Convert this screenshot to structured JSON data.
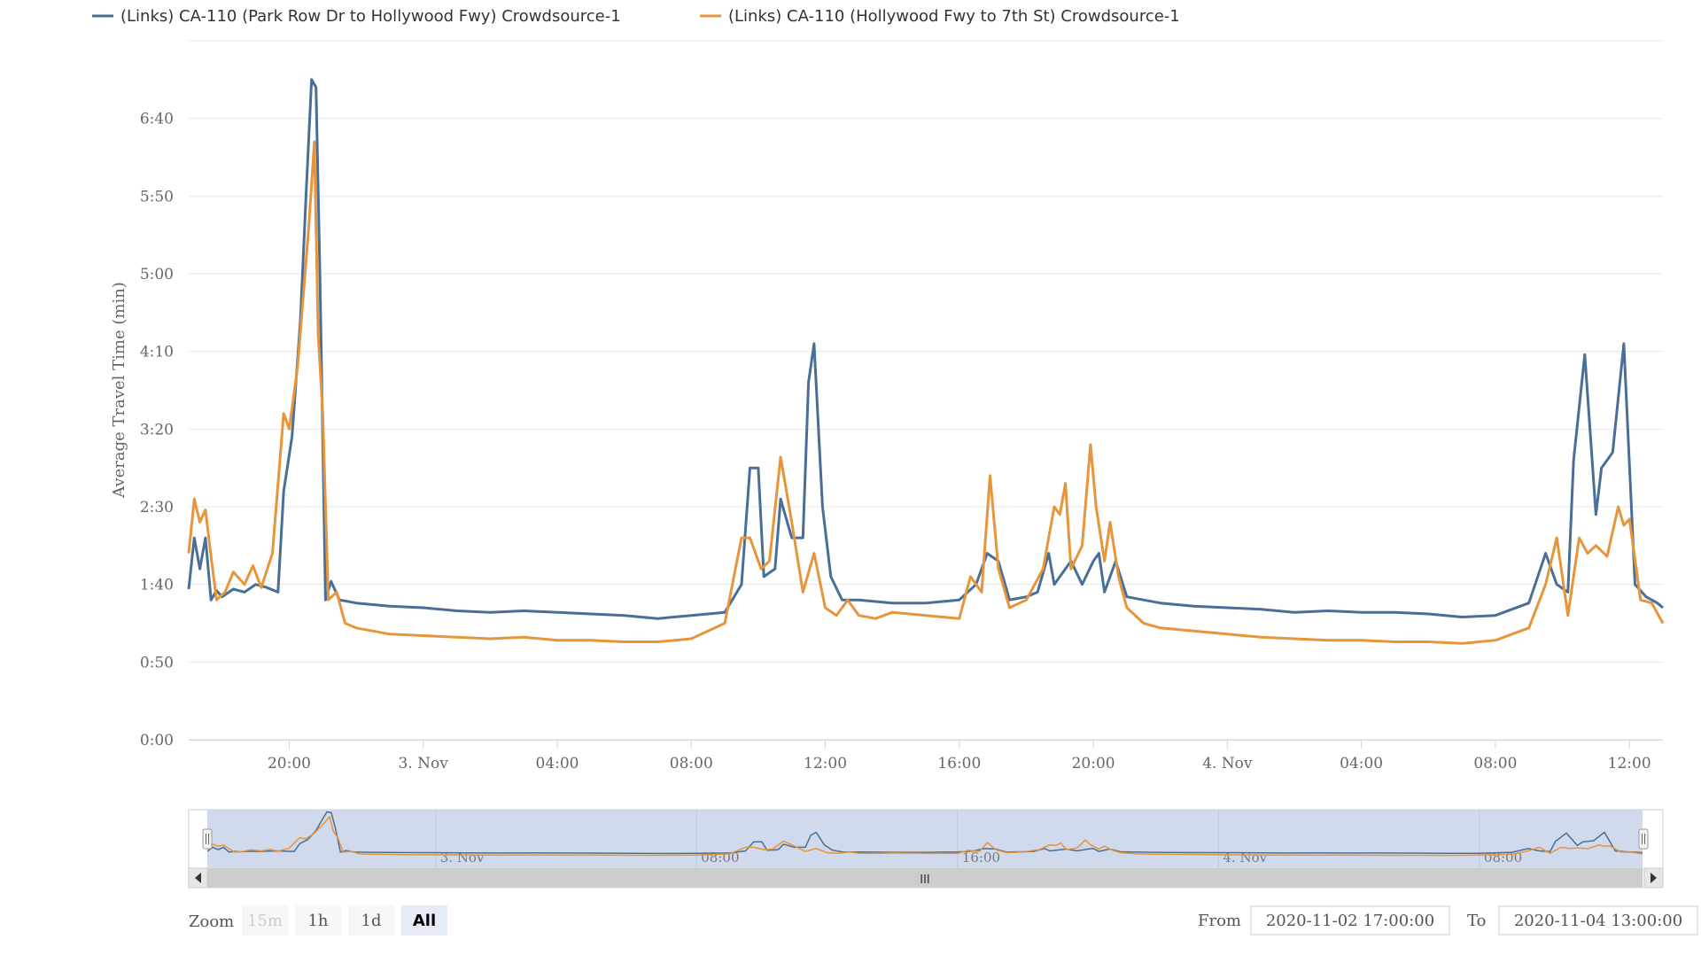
{
  "chart_data": {
    "type": "line",
    "ylabel": "Average Travel Time (min)",
    "y_ticks": [
      "0:00",
      "0:50",
      "1:40",
      "2:30",
      "3:20",
      "4:10",
      "5:00",
      "5:50",
      "6:40"
    ],
    "ylim_seconds": [
      0,
      450
    ],
    "x_range": [
      "2020-11-02 17:00",
      "2020-11-04 13:00"
    ],
    "x_ticks": [
      {
        "t": "2020-11-02 20:00",
        "label": "20:00"
      },
      {
        "t": "2020-11-03 00:00",
        "label": "3. Nov"
      },
      {
        "t": "2020-11-03 04:00",
        "label": "04:00"
      },
      {
        "t": "2020-11-03 08:00",
        "label": "08:00"
      },
      {
        "t": "2020-11-03 12:00",
        "label": "12:00"
      },
      {
        "t": "2020-11-03 16:00",
        "label": "16:00"
      },
      {
        "t": "2020-11-03 20:00",
        "label": "20:00"
      },
      {
        "t": "2020-11-04 00:00",
        "label": "4. Nov"
      },
      {
        "t": "2020-11-04 04:00",
        "label": "04:00"
      },
      {
        "t": "2020-11-04 08:00",
        "label": "08:00"
      },
      {
        "t": "2020-11-04 12:00",
        "label": "12:00"
      }
    ],
    "series": [
      {
        "name": "(Links) CA-110 (Park Row Dr to Hollywood Fwy) Crowdsource-1",
        "color": "#4a6f97",
        "points": [
          [
            "2020-11-02 17:00",
            97
          ],
          [
            "2020-11-02 17:10",
            130
          ],
          [
            "2020-11-02 17:20",
            110
          ],
          [
            "2020-11-02 17:30",
            130
          ],
          [
            "2020-11-02 17:40",
            90
          ],
          [
            "2020-11-02 17:50",
            96
          ],
          [
            "2020-11-02 18:00",
            92
          ],
          [
            "2020-11-02 18:20",
            97
          ],
          [
            "2020-11-02 18:40",
            95
          ],
          [
            "2020-11-02 19:00",
            100
          ],
          [
            "2020-11-02 19:20",
            98
          ],
          [
            "2020-11-02 19:40",
            95
          ],
          [
            "2020-11-02 19:50",
            160
          ],
          [
            "2020-11-02 20:05",
            195
          ],
          [
            "2020-11-02 20:20",
            270
          ],
          [
            "2020-11-02 20:30",
            350
          ],
          [
            "2020-11-02 20:40",
            425
          ],
          [
            "2020-11-02 20:48",
            420
          ],
          [
            "2020-11-02 20:55",
            300
          ],
          [
            "2020-11-02 21:05",
            90
          ],
          [
            "2020-11-02 21:15",
            102
          ],
          [
            "2020-11-02 21:30",
            90
          ],
          [
            "2020-11-02 22:00",
            88
          ],
          [
            "2020-11-02 23:00",
            86
          ],
          [
            "2020-11-03 00:00",
            85
          ],
          [
            "2020-11-03 01:00",
            83
          ],
          [
            "2020-11-03 02:00",
            82
          ],
          [
            "2020-11-03 03:00",
            83
          ],
          [
            "2020-11-03 04:00",
            82
          ],
          [
            "2020-11-03 05:00",
            81
          ],
          [
            "2020-11-03 06:00",
            80
          ],
          [
            "2020-11-03 07:00",
            78
          ],
          [
            "2020-11-03 08:00",
            80
          ],
          [
            "2020-11-03 09:00",
            82
          ],
          [
            "2020-11-03 09:30",
            100
          ],
          [
            "2020-11-03 09:45",
            175
          ],
          [
            "2020-11-03 10:00",
            175
          ],
          [
            "2020-11-03 10:10",
            105
          ],
          [
            "2020-11-03 10:30",
            110
          ],
          [
            "2020-11-03 10:40",
            155
          ],
          [
            "2020-11-03 11:00",
            130
          ],
          [
            "2020-11-03 11:20",
            130
          ],
          [
            "2020-11-03 11:30",
            230
          ],
          [
            "2020-11-03 11:40",
            255
          ],
          [
            "2020-11-03 11:55",
            150
          ],
          [
            "2020-11-03 12:10",
            105
          ],
          [
            "2020-11-03 12:30",
            90
          ],
          [
            "2020-11-03 13:00",
            90
          ],
          [
            "2020-11-03 14:00",
            88
          ],
          [
            "2020-11-03 15:00",
            88
          ],
          [
            "2020-11-03 16:00",
            90
          ],
          [
            "2020-11-03 16:30",
            100
          ],
          [
            "2020-11-03 16:50",
            120
          ],
          [
            "2020-11-03 17:10",
            115
          ],
          [
            "2020-11-03 17:30",
            90
          ],
          [
            "2020-11-03 18:00",
            92
          ],
          [
            "2020-11-03 18:20",
            95
          ],
          [
            "2020-11-03 18:40",
            120
          ],
          [
            "2020-11-03 18:50",
            100
          ],
          [
            "2020-11-03 19:10",
            110
          ],
          [
            "2020-11-03 19:20",
            115
          ],
          [
            "2020-11-03 19:40",
            100
          ],
          [
            "2020-11-03 20:00",
            115
          ],
          [
            "2020-11-03 20:10",
            120
          ],
          [
            "2020-11-03 20:20",
            95
          ],
          [
            "2020-11-03 20:40",
            115
          ],
          [
            "2020-11-03 21:00",
            92
          ],
          [
            "2020-11-03 22:00",
            88
          ],
          [
            "2020-11-03 23:00",
            86
          ],
          [
            "2020-11-04 00:00",
            85
          ],
          [
            "2020-11-04 01:00",
            84
          ],
          [
            "2020-11-04 02:00",
            82
          ],
          [
            "2020-11-04 03:00",
            83
          ],
          [
            "2020-11-04 04:00",
            82
          ],
          [
            "2020-11-04 05:00",
            82
          ],
          [
            "2020-11-04 06:00",
            81
          ],
          [
            "2020-11-04 07:00",
            79
          ],
          [
            "2020-11-04 08:00",
            80
          ],
          [
            "2020-11-04 09:00",
            88
          ],
          [
            "2020-11-04 09:30",
            120
          ],
          [
            "2020-11-04 09:50",
            100
          ],
          [
            "2020-11-04 10:10",
            95
          ],
          [
            "2020-11-04 10:20",
            180
          ],
          [
            "2020-11-04 10:40",
            248
          ],
          [
            "2020-11-04 11:00",
            145
          ],
          [
            "2020-11-04 11:10",
            175
          ],
          [
            "2020-11-04 11:30",
            185
          ],
          [
            "2020-11-04 11:50",
            255
          ],
          [
            "2020-11-04 12:10",
            100
          ],
          [
            "2020-11-04 12:30",
            92
          ],
          [
            "2020-11-04 12:50",
            88
          ],
          [
            "2020-11-04 13:00",
            85
          ]
        ]
      },
      {
        "name": "(Links) CA-110 (Hollywood Fwy to 7th St) Crowdsource-1",
        "color": "#e6953b",
        "points": [
          [
            "2020-11-02 17:00",
            120
          ],
          [
            "2020-11-02 17:10",
            155
          ],
          [
            "2020-11-02 17:20",
            140
          ],
          [
            "2020-11-02 17:30",
            148
          ],
          [
            "2020-11-02 17:40",
            118
          ],
          [
            "2020-11-02 17:50",
            90
          ],
          [
            "2020-11-02 18:05",
            95
          ],
          [
            "2020-11-02 18:20",
            108
          ],
          [
            "2020-11-02 18:40",
            100
          ],
          [
            "2020-11-02 18:55",
            112
          ],
          [
            "2020-11-02 19:10",
            98
          ],
          [
            "2020-11-02 19:30",
            120
          ],
          [
            "2020-11-02 19:50",
            210
          ],
          [
            "2020-11-02 20:00",
            200
          ],
          [
            "2020-11-02 20:15",
            240
          ],
          [
            "2020-11-02 20:35",
            330
          ],
          [
            "2020-11-02 20:45",
            385
          ],
          [
            "2020-11-02 20:52",
            260
          ],
          [
            "2020-11-02 21:00",
            210
          ],
          [
            "2020-11-02 21:10",
            90
          ],
          [
            "2020-11-02 21:25",
            95
          ],
          [
            "2020-11-02 21:40",
            75
          ],
          [
            "2020-11-02 22:00",
            72
          ],
          [
            "2020-11-02 23:00",
            68
          ],
          [
            "2020-11-03 00:00",
            67
          ],
          [
            "2020-11-03 01:00",
            66
          ],
          [
            "2020-11-03 02:00",
            65
          ],
          [
            "2020-11-03 03:00",
            66
          ],
          [
            "2020-11-03 04:00",
            64
          ],
          [
            "2020-11-03 05:00",
            64
          ],
          [
            "2020-11-03 06:00",
            63
          ],
          [
            "2020-11-03 07:00",
            63
          ],
          [
            "2020-11-03 08:00",
            65
          ],
          [
            "2020-11-03 09:00",
            75
          ],
          [
            "2020-11-03 09:30",
            130
          ],
          [
            "2020-11-03 09:45",
            130
          ],
          [
            "2020-11-03 10:05",
            110
          ],
          [
            "2020-11-03 10:20",
            115
          ],
          [
            "2020-11-03 10:40",
            182
          ],
          [
            "2020-11-03 11:00",
            140
          ],
          [
            "2020-11-03 11:20",
            95
          ],
          [
            "2020-11-03 11:40",
            120
          ],
          [
            "2020-11-03 12:00",
            85
          ],
          [
            "2020-11-03 12:20",
            80
          ],
          [
            "2020-11-03 12:40",
            90
          ],
          [
            "2020-11-03 13:00",
            80
          ],
          [
            "2020-11-03 13:30",
            78
          ],
          [
            "2020-11-03 14:00",
            82
          ],
          [
            "2020-11-03 15:00",
            80
          ],
          [
            "2020-11-03 16:00",
            78
          ],
          [
            "2020-11-03 16:20",
            105
          ],
          [
            "2020-11-03 16:40",
            95
          ],
          [
            "2020-11-03 16:55",
            170
          ],
          [
            "2020-11-03 17:10",
            110
          ],
          [
            "2020-11-03 17:30",
            85
          ],
          [
            "2020-11-03 18:00",
            90
          ],
          [
            "2020-11-03 18:30",
            110
          ],
          [
            "2020-11-03 18:50",
            150
          ],
          [
            "2020-11-03 19:00",
            145
          ],
          [
            "2020-11-03 19:10",
            165
          ],
          [
            "2020-11-03 19:20",
            110
          ],
          [
            "2020-11-03 19:40",
            125
          ],
          [
            "2020-11-03 19:55",
            190
          ],
          [
            "2020-11-03 20:05",
            150
          ],
          [
            "2020-11-03 20:20",
            115
          ],
          [
            "2020-11-03 20:30",
            140
          ],
          [
            "2020-11-03 20:45",
            105
          ],
          [
            "2020-11-03 21:00",
            85
          ],
          [
            "2020-11-03 21:30",
            75
          ],
          [
            "2020-11-03 22:00",
            72
          ],
          [
            "2020-11-03 23:00",
            70
          ],
          [
            "2020-11-04 00:00",
            68
          ],
          [
            "2020-11-04 01:00",
            66
          ],
          [
            "2020-11-04 02:00",
            65
          ],
          [
            "2020-11-04 03:00",
            64
          ],
          [
            "2020-11-04 04:00",
            64
          ],
          [
            "2020-11-04 05:00",
            63
          ],
          [
            "2020-11-04 06:00",
            63
          ],
          [
            "2020-11-04 07:00",
            62
          ],
          [
            "2020-11-04 08:00",
            64
          ],
          [
            "2020-11-04 09:00",
            72
          ],
          [
            "2020-11-04 09:30",
            100
          ],
          [
            "2020-11-04 09:50",
            130
          ],
          [
            "2020-11-04 10:10",
            80
          ],
          [
            "2020-11-04 10:30",
            130
          ],
          [
            "2020-11-04 10:45",
            120
          ],
          [
            "2020-11-04 11:00",
            125
          ],
          [
            "2020-11-04 11:20",
            118
          ],
          [
            "2020-11-04 11:40",
            150
          ],
          [
            "2020-11-04 11:50",
            138
          ],
          [
            "2020-11-04 12:00",
            142
          ],
          [
            "2020-11-04 12:20",
            90
          ],
          [
            "2020-11-04 12:40",
            88
          ],
          [
            "2020-11-04 13:00",
            75
          ]
        ]
      }
    ],
    "navigator": {
      "labels": [
        "3. Nov",
        "08:00",
        "16:00",
        "4. Nov",
        "08:00"
      ],
      "scroll_thumb": "III"
    },
    "range_selector": {
      "zoom_label": "Zoom",
      "buttons": [
        "15m",
        "1h",
        "1d",
        "All"
      ],
      "selected": "All",
      "disabled": [
        "15m"
      ],
      "from_label": "From",
      "from_value": "2020-11-02 17:00:00",
      "to_label": "To",
      "to_value": "2020-11-04 13:00:00"
    }
  }
}
